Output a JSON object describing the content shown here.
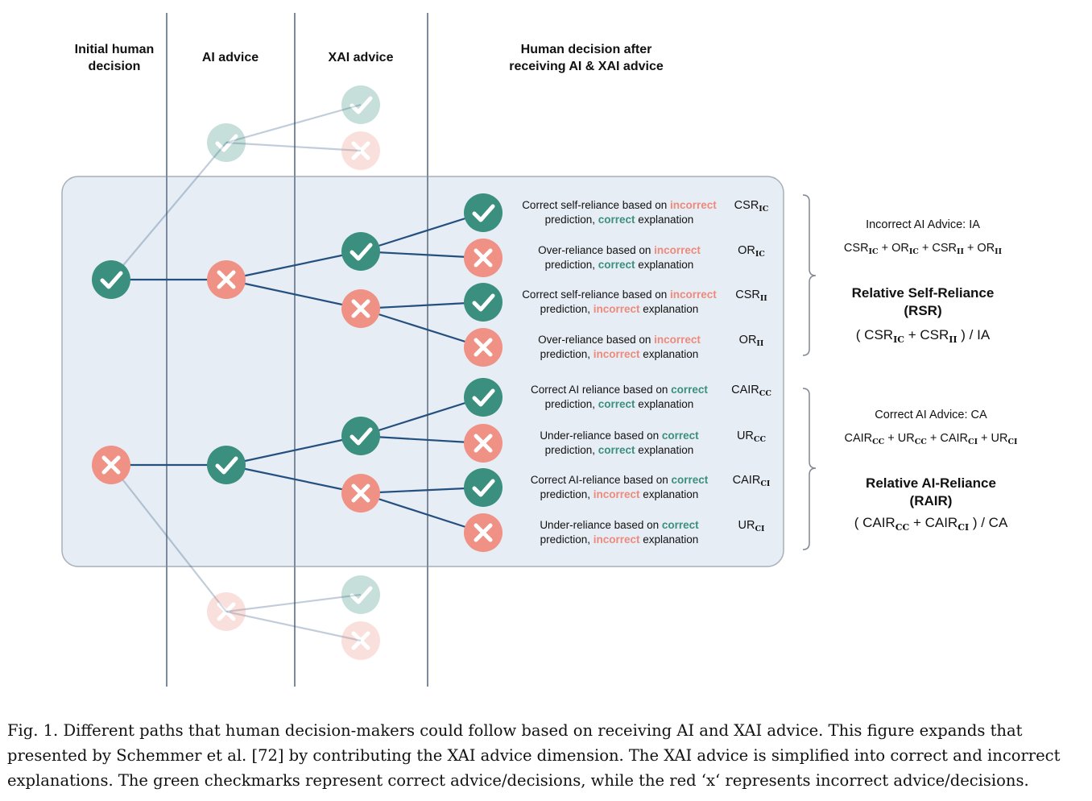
{
  "headers": {
    "initial_line1": "Initial human",
    "initial_line2": "decision",
    "ai": "AI advice",
    "xai": "XAI advice",
    "after_line1": "Human decision after",
    "after_line2": "receiving AI & XAI advice"
  },
  "rows": [
    {
      "p1": "Correct self-reliance based on ",
      "w1": "incorrect",
      "p2": "prediction, ",
      "w2": "correct",
      "p3": " explanation",
      "metric": "CSR",
      "sub": "IC"
    },
    {
      "p1": "Over-reliance based on ",
      "w1": "incorrect",
      "p2": "prediction, ",
      "w2": "correct",
      "p3": " explanation",
      "metric": "OR",
      "sub": "IC"
    },
    {
      "p1": "Correct self-reliance based on ",
      "w1": "incorrect",
      "p2": "prediction, ",
      "w2": "incorrect",
      "p3": " explanation",
      "metric": "CSR",
      "sub": "II"
    },
    {
      "p1": "Over-reliance based on ",
      "w1": "incorrect",
      "p2": "prediction, ",
      "w2": "incorrect",
      "p3": " explanation",
      "metric": "OR",
      "sub": "II"
    },
    {
      "p1": "Correct AI reliance based on ",
      "w1": "correct",
      "p2": "prediction, ",
      "w2": "correct",
      "p3": " explanation",
      "metric": "CAIR",
      "sub": "CC"
    },
    {
      "p1": "Under-reliance based on ",
      "w1": "correct",
      "p2": "prediction, ",
      "w2": "correct",
      "p3": " explanation",
      "metric": "UR",
      "sub": "CC"
    },
    {
      "p1": "Correct AI-reliance based on ",
      "w1": "correct",
      "p2": "prediction, ",
      "w2": "incorrect",
      "p3": " explanation",
      "metric": "CAIR",
      "sub": "CI"
    },
    {
      "p1": "Under-reliance based on ",
      "w1": "correct",
      "p2": "prediction, ",
      "w2": "incorrect",
      "p3": " explanation",
      "metric": "UR",
      "sub": "CI"
    }
  ],
  "rsr": {
    "def": "Incorrect AI Advice: IA",
    "sum": {
      "t1": "CSR",
      "s1": "IC",
      "t2": " + OR",
      "s2": "IC",
      "t3": " + CSR",
      "s3": "II",
      "t4": " + OR",
      "s4": "II"
    },
    "title_line1": "Relative Self-Reliance",
    "title_line2": "(RSR)",
    "ratio": {
      "t1": "( CSR",
      "s1": "IC",
      "t2": " + CSR",
      "s2": "II",
      "t3": " ) / IA"
    }
  },
  "rair": {
    "def": "Correct AI Advice: CA",
    "sum": {
      "t1": "CAIR",
      "s1": "CC",
      "t2": " + UR",
      "s2": "CC",
      "t3": " + CAIR",
      "s3": "CI",
      "t4": " + UR",
      "s4": "CI"
    },
    "title_line1": "Relative AI-Reliance",
    "title_line2": "(RAIR)",
    "ratio": {
      "t1": "( CAIR",
      "s1": "CC",
      "t2": " + CAIR",
      "s2": "CI",
      "t3": " ) / CA"
    }
  },
  "caption": {
    "line1": "Fig. 1.  Different paths that human decision-makers could follow based on receiving AI and XAI advice. This figure expands that",
    "line2": "presented by Schemmer et al. [72] by contributing the XAI advice dimension. The XAI advice is simplified into correct and incorrect",
    "line3": "explanations. The green checkmarks represent correct advice/decisions, while the red ‘x‘ represents incorrect advice/decisions."
  },
  "colors": {
    "correct": "#3b8f7e",
    "incorrect": "#ef9184",
    "edge": "#24507f",
    "divider": "#7d8a9c",
    "panel": "#e7edf4"
  },
  "icons": {
    "correct": "check-icon",
    "incorrect": "cross-icon"
  }
}
